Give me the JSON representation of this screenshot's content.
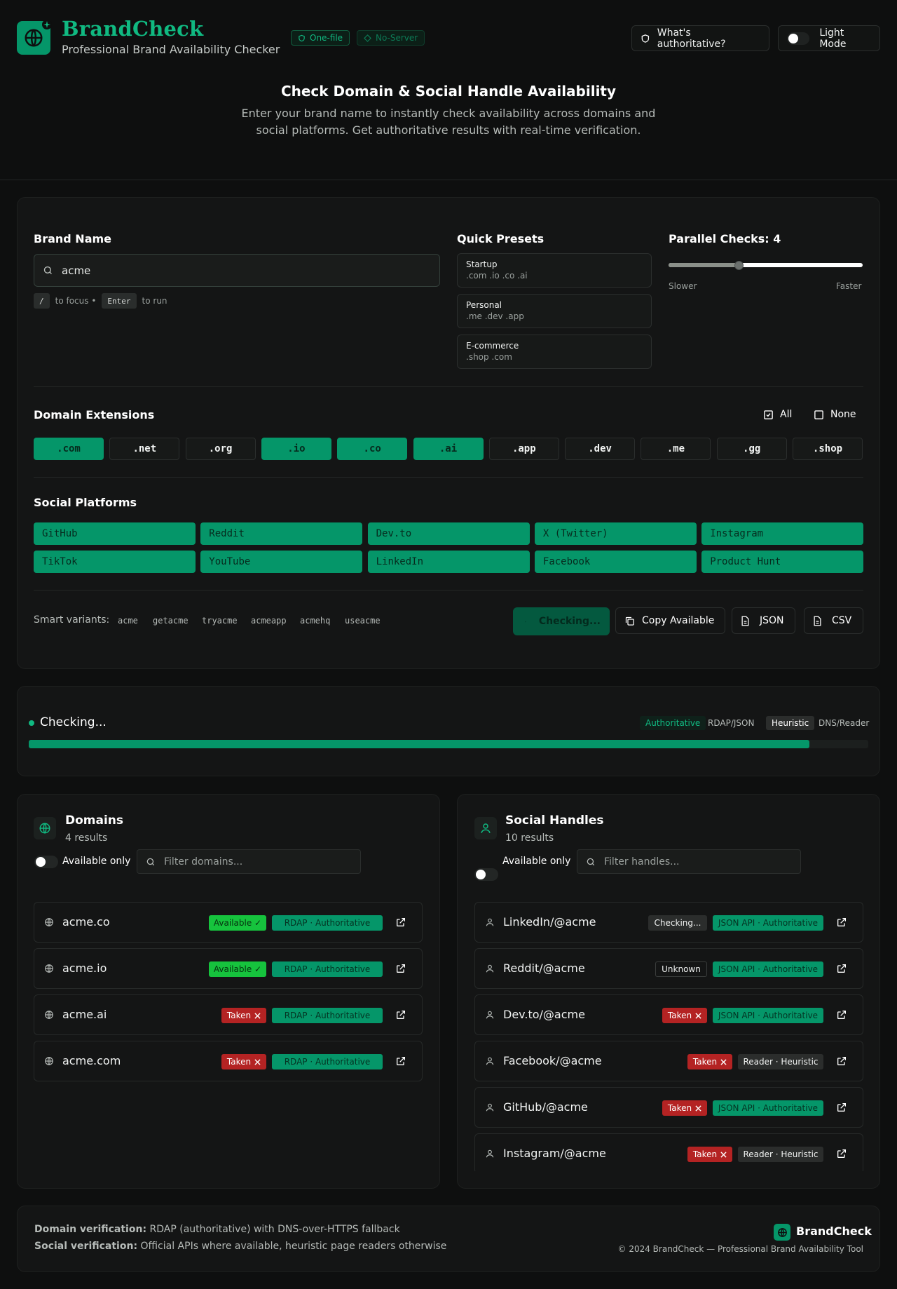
{
  "app": {
    "name": "BrandCheck",
    "tagline": "Professional Brand Availability Checker",
    "pills": [
      "One-file",
      "No-Server"
    ],
    "authoritative_btn": "What's authoritative?",
    "theme_btn": "Light Mode"
  },
  "hero": {
    "title": "Check Domain & Social Handle Availability",
    "subtitle": "Enter your brand name to instantly check availability across domains and social platforms. Get authoritative results with real-time verification."
  },
  "form": {
    "brand_label": "Brand Name",
    "brand_value": "acme",
    "hint_key1": "/",
    "hint_text1": "to focus •",
    "hint_key2": "Enter",
    "hint_text2": "to run",
    "presets_label": "Quick Presets",
    "presets": [
      {
        "name": "Startup",
        "exts": ".com .io .co .ai"
      },
      {
        "name": "Personal",
        "exts": ".me .dev .app"
      },
      {
        "name": "E-commerce",
        "exts": ".shop .com"
      }
    ],
    "parallel_label": "Parallel Checks: 4",
    "parallel_value": 4,
    "slider_min_label": "Slower",
    "slider_max_label": "Faster",
    "domains_label": "Domain Extensions",
    "all_label": "All",
    "none_label": "None",
    "extensions": [
      {
        "label": ".com",
        "on": true
      },
      {
        "label": ".net",
        "on": false
      },
      {
        "label": ".org",
        "on": false
      },
      {
        "label": ".io",
        "on": true
      },
      {
        "label": ".co",
        "on": true
      },
      {
        "label": ".ai",
        "on": true
      },
      {
        "label": ".app",
        "on": false
      },
      {
        "label": ".dev",
        "on": false
      },
      {
        "label": ".me",
        "on": false
      },
      {
        "label": ".gg",
        "on": false
      },
      {
        "label": ".shop",
        "on": false
      }
    ],
    "social_label": "Social Platforms",
    "platforms": [
      "GitHub",
      "Reddit",
      "Dev.to",
      "X (Twitter)",
      "Instagram",
      "TikTok",
      "YouTube",
      "LinkedIn",
      "Facebook",
      "Product Hunt"
    ],
    "variants_label": "Smart variants:",
    "variants": [
      "acme",
      "getacme",
      "tryacme",
      "acmeapp",
      "acmehq",
      "useacme"
    ],
    "checking_btn": "Checking...",
    "copy_btn": "Copy Available",
    "json_btn": "JSON",
    "csv_btn": "CSV"
  },
  "progress": {
    "status": "Checking...",
    "auth_badge": "Authoritative",
    "auth_text": "RDAP/JSON",
    "heur_badge": "Heuristic",
    "heur_text": "DNS/Reader",
    "percent": 93
  },
  "domains": {
    "title": "Domains",
    "count": "4 results",
    "available_only": "Available only",
    "filter_placeholder": "Filter domains...",
    "rows": [
      {
        "name": "acme.co",
        "status": "Available ✓",
        "source": "RDAP · Authoritative"
      },
      {
        "name": "acme.io",
        "status": "Available ✓",
        "source": "RDAP · Authoritative"
      },
      {
        "name": "acme.ai",
        "status": "Taken",
        "source": "RDAP · Authoritative"
      },
      {
        "name": "acme.com",
        "status": "Taken",
        "source": "RDAP · Authoritative"
      }
    ]
  },
  "social": {
    "title": "Social Handles",
    "count": "10 results",
    "available_only": "Available only",
    "filter_placeholder": "Filter handles...",
    "rows": [
      {
        "name": "LinkedIn/@acme",
        "status": "Checking...",
        "source": "JSON API · Authoritative"
      },
      {
        "name": "Reddit/@acme",
        "status": "Unknown",
        "source": "JSON API · Authoritative"
      },
      {
        "name": "Dev.to/@acme",
        "status": "Taken",
        "source": "JSON API · Authoritative"
      },
      {
        "name": "Facebook/@acme",
        "status": "Taken",
        "source": "Reader · Heuristic"
      },
      {
        "name": "GitHub/@acme",
        "status": "Taken",
        "source": "JSON API · Authoritative"
      },
      {
        "name": "Instagram/@acme",
        "status": "Taken",
        "source": "Reader · Heuristic"
      }
    ]
  },
  "footer": {
    "domain_label": "Domain verification:",
    "domain_text": "RDAP (authoritative) with DNS-over-HTTPS fallback",
    "social_label": "Social verification:",
    "social_text": "Official APIs where available, heuristic page readers otherwise",
    "brand": "BrandCheck",
    "copyright": "© 2024 BrandCheck — Professional Brand Availability Tool"
  },
  "colors": {
    "accent": "#059669",
    "brand": "#10b981",
    "available": "#16c33d",
    "taken": "#b42323"
  }
}
